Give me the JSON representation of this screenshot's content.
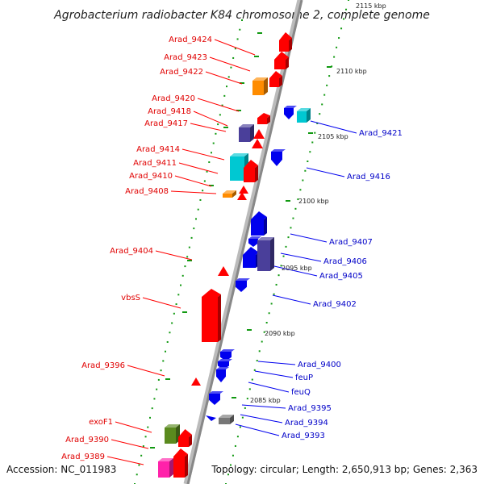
{
  "title": "Agrobacterium radiobacter K84 chromosome 2, complete genome",
  "accession": "Accession: NC_011983",
  "topology": "Topology: circular; Length: 2,650,913 bp; Genes: 2,363",
  "colors": {
    "forward": "#ff0000",
    "reverse": "#0000ee",
    "cyan": "#00c8d2",
    "purple": "#4a3f9a",
    "orange": "#ff8c00",
    "olive": "#5a8a1e",
    "magenta": "#ff22aa",
    "grey": "#777777",
    "backbone": "#888888",
    "tick": "#119911"
  },
  "kbp_labels": [
    "2115 kbp",
    "2110 kbp",
    "2105 kbp",
    "2100 kbp",
    "2095 kbp",
    "2090 kbp",
    "2085 kbp"
  ],
  "left_labels": [
    "Arad_9424",
    "Arad_9423",
    "Arad_9422",
    "Arad_9420",
    "Arad_9418",
    "Arad_9417",
    "Arad_9414",
    "Arad_9411",
    "Arad_9410",
    "Arad_9408",
    "Arad_9404",
    "vbsS",
    "Arad_9396",
    "exoF1",
    "Arad_9390",
    "Arad_9389"
  ],
  "right_labels": [
    "Arad_9421",
    "Arad_9416",
    "Arad_9407",
    "Arad_9406",
    "Arad_9405",
    "Arad_9402",
    "Arad_9400",
    "feuP",
    "feuQ",
    "Arad_9395",
    "Arad_9394",
    "Arad_9393"
  ]
}
